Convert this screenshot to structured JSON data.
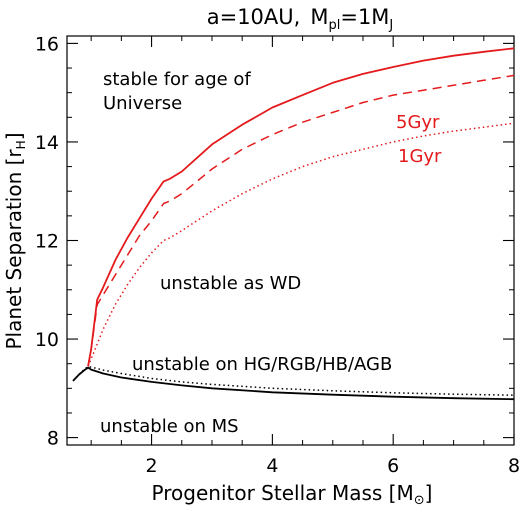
{
  "chart_data": {
    "type": "line",
    "title_parts": {
      "a": "a=10AU,",
      "m": "M",
      "pl": "pl",
      "eq": "=1M",
      "j": "J"
    },
    "xlabel": {
      "main": "Progenitor Stellar Mass [M",
      "close": "]"
    },
    "ylabel": {
      "main": "Planet Separation [r",
      "sub": "H",
      "close": "]"
    },
    "xlim": [
      0.6,
      8
    ],
    "ylim": [
      7.85,
      16.15
    ],
    "xticks": [
      2,
      4,
      6,
      8
    ],
    "yticks": [
      8,
      10,
      12,
      14,
      16
    ],
    "xticks_minor": [
      1,
      1.5,
      2.5,
      3,
      3.5,
      4.5,
      5,
      5.5,
      6.5,
      7,
      7.5
    ],
    "yticks_minor": [
      8.5,
      9,
      9.5,
      10.5,
      11,
      11.5,
      12.5,
      13,
      13.5,
      14.5,
      15,
      15.5
    ],
    "annotations": {
      "stable_line1": "stable for age of",
      "stable_line2": "Universe",
      "unstable_wd": "unstable as WD",
      "unstable_hg": "unstable on HG/RGB/HB/AGB",
      "unstable_ms": "unstable on MS",
      "label_5gyr": "5Gyr",
      "label_1gyr": "1Gyr"
    },
    "colors": {
      "red": "#e41a1c",
      "black": "#000000"
    },
    "series": [
      {
        "key": "stable_universe",
        "color": "red",
        "style": "solid",
        "x": [
          0.95,
          1.0,
          1.1,
          1.2,
          1.4,
          1.6,
          1.8,
          2.0,
          2.2,
          2.3,
          2.5,
          3.0,
          3.5,
          4.0,
          4.5,
          5.0,
          5.5,
          6.0,
          6.5,
          7.0,
          7.5,
          8.0
        ],
        "y": [
          9.45,
          9.8,
          10.8,
          11.05,
          11.6,
          12.05,
          12.45,
          12.85,
          13.2,
          13.25,
          13.4,
          13.95,
          14.35,
          14.7,
          14.95,
          15.2,
          15.38,
          15.52,
          15.65,
          15.75,
          15.83,
          15.9
        ]
      },
      {
        "key": "5gyr",
        "color": "red",
        "style": "dashed",
        "x": [
          0.95,
          1.0,
          1.1,
          1.2,
          1.4,
          1.6,
          1.8,
          2.0,
          2.2,
          2.3,
          2.5,
          3.0,
          3.5,
          4.0,
          4.5,
          5.0,
          5.5,
          6.0,
          6.5,
          7.0,
          7.5,
          8.0
        ],
        "y": [
          9.45,
          9.8,
          10.7,
          10.9,
          11.3,
          11.7,
          12.1,
          12.4,
          12.75,
          12.8,
          12.95,
          13.45,
          13.85,
          14.15,
          14.4,
          14.6,
          14.8,
          14.95,
          15.05,
          15.15,
          15.25,
          15.35
        ]
      },
      {
        "key": "1gyr",
        "color": "red",
        "style": "dotted",
        "x": [
          0.95,
          1.0,
          1.1,
          1.2,
          1.4,
          1.6,
          1.8,
          2.0,
          2.2,
          2.3,
          2.5,
          3.0,
          3.5,
          4.0,
          4.5,
          5.0,
          5.5,
          6.0,
          6.5,
          7.0,
          7.5,
          8.0
        ],
        "y": [
          9.45,
          9.6,
          9.9,
          10.2,
          10.7,
          11.1,
          11.45,
          11.75,
          12.0,
          12.05,
          12.2,
          12.6,
          12.95,
          13.25,
          13.5,
          13.7,
          13.85,
          14.0,
          14.12,
          14.22,
          14.3,
          14.38
        ]
      },
      {
        "key": "unstable_hg_dotted",
        "color": "black",
        "style": "dotted",
        "x": [
          0.7,
          0.8,
          0.9,
          0.95,
          1.0,
          1.2,
          1.5,
          2.0,
          2.5,
          3.0,
          4.0,
          5.0,
          6.0,
          7.0,
          8.0
        ],
        "y": [
          9.15,
          9.28,
          9.4,
          9.44,
          9.43,
          9.37,
          9.3,
          9.2,
          9.13,
          9.08,
          9.0,
          8.95,
          8.91,
          8.88,
          8.86
        ]
      },
      {
        "key": "unstable_ms",
        "color": "black",
        "style": "solid",
        "x": [
          0.7,
          0.8,
          0.9,
          0.95,
          1.0,
          1.2,
          1.5,
          2.0,
          2.5,
          3.0,
          4.0,
          5.0,
          6.0,
          7.0,
          8.0
        ],
        "y": [
          9.15,
          9.28,
          9.38,
          9.42,
          9.38,
          9.3,
          9.22,
          9.13,
          9.06,
          9.0,
          8.92,
          8.87,
          8.83,
          8.8,
          8.78
        ]
      }
    ]
  }
}
